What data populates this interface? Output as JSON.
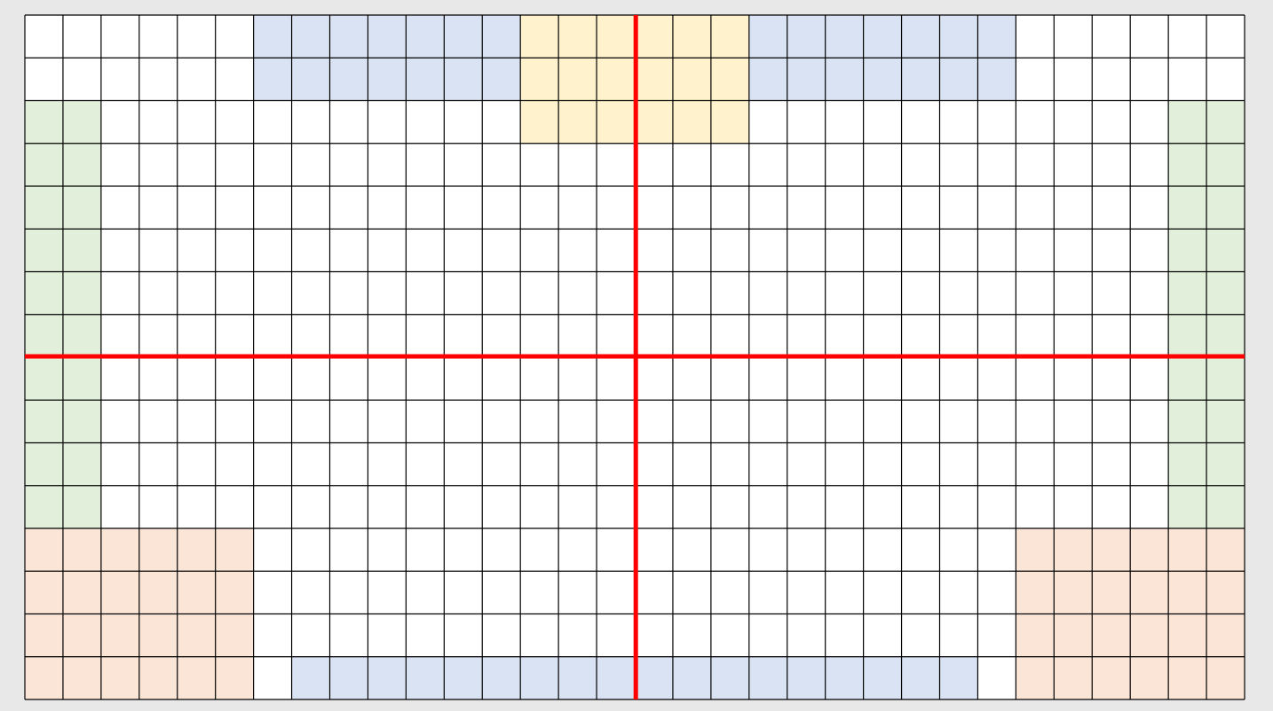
{
  "grid": {
    "columns": 32,
    "rows": 16,
    "background": "#e8e8e8",
    "cell_fill": "#ffffff",
    "grid_line_color": "#000000",
    "axis_color": "#ff0000",
    "axis_after_column": 16,
    "axis_after_row": 8,
    "regions": [
      {
        "name": "top-blue-left",
        "color": "#dae3f3",
        "col_start": 6,
        "col_end": 12,
        "row_start": 0,
        "row_end": 1
      },
      {
        "name": "top-yellow",
        "color": "#fff2cc",
        "col_start": 13,
        "col_end": 18,
        "row_start": 0,
        "row_end": 2
      },
      {
        "name": "top-blue-right",
        "color": "#dae3f3",
        "col_start": 19,
        "col_end": 25,
        "row_start": 0,
        "row_end": 1
      },
      {
        "name": "left-green",
        "color": "#e2efda",
        "col_start": 0,
        "col_end": 1,
        "row_start": 2,
        "row_end": 11
      },
      {
        "name": "right-green",
        "color": "#e2efda",
        "col_start": 30,
        "col_end": 31,
        "row_start": 2,
        "row_end": 11
      },
      {
        "name": "bottom-left-orange",
        "color": "#fbe5d6",
        "col_start": 0,
        "col_end": 5,
        "row_start": 12,
        "row_end": 15
      },
      {
        "name": "bottom-right-orange",
        "color": "#fbe5d6",
        "col_start": 26,
        "col_end": 31,
        "row_start": 12,
        "row_end": 15
      },
      {
        "name": "bottom-blue",
        "color": "#dae3f3",
        "col_start": 7,
        "col_end": 24,
        "row_start": 15,
        "row_end": 15
      }
    ]
  }
}
